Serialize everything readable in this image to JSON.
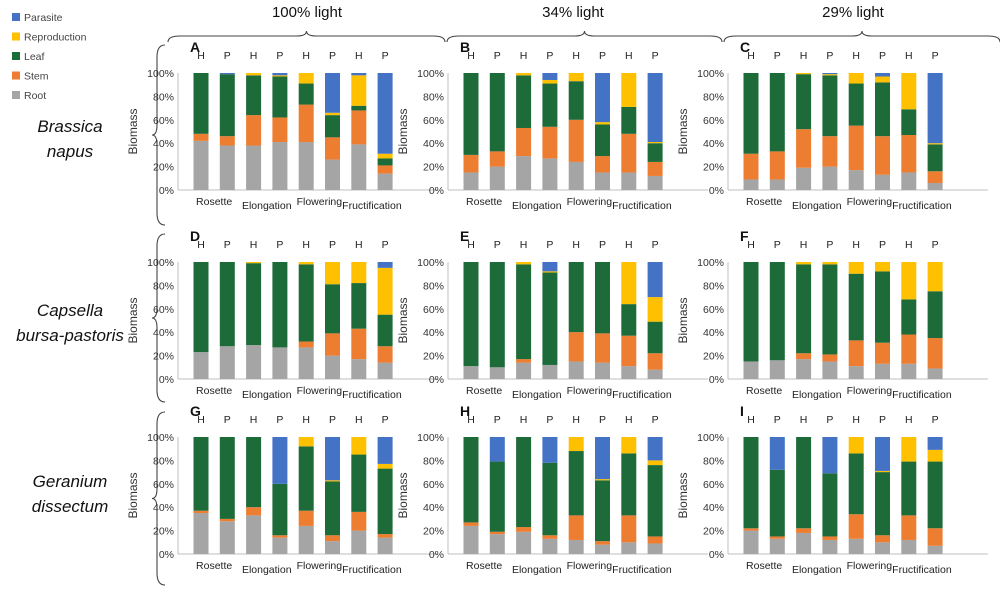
{
  "colors": {
    "Parasite": "#4472C4",
    "Reproduction": "#FFC000",
    "Leaf": "#1E6B3A",
    "Stem": "#ED7D31",
    "Root": "#A5A5A5"
  },
  "legend": [
    "Parasite",
    "Reproduction",
    "Leaf",
    "Stem",
    "Root"
  ],
  "conditions": [
    "100% light",
    "34% light",
    "29% light"
  ],
  "species": [
    {
      "line1": "Brassica",
      "line2": "napus"
    },
    {
      "line1": "Capsella",
      "line2": "bursa-pastoris"
    },
    {
      "line1": "Geranium",
      "line2": "dissectum"
    }
  ],
  "bar_labels": [
    "H",
    "P",
    "H",
    "P",
    "H",
    "P",
    "H",
    "P"
  ],
  "stages": [
    "Rosette",
    "Elongation",
    "Flowering",
    "Fructification"
  ],
  "ylabel": "Biomass",
  "yticks": [
    "0%",
    "20%",
    "40%",
    "60%",
    "80%",
    "100%"
  ],
  "chart_data": [
    {
      "panel": "A",
      "type": "bar",
      "stacked": true,
      "ylim": [
        0,
        100
      ],
      "ylabel": "Biomass",
      "categories": [
        "Rosette H",
        "Rosette P",
        "Elongation H",
        "Elongation P",
        "Flowering H",
        "Flowering P",
        "Fructification H",
        "Fructification P"
      ],
      "series": [
        {
          "name": "Root",
          "values": [
            42,
            38,
            38,
            41,
            41,
            26,
            39,
            14
          ]
        },
        {
          "name": "Stem",
          "values": [
            6,
            8,
            26,
            21,
            32,
            19,
            29,
            7
          ]
        },
        {
          "name": "Leaf",
          "values": [
            52,
            53,
            34,
            35,
            18,
            19,
            4,
            6
          ]
        },
        {
          "name": "Reproduction",
          "values": [
            0,
            0,
            2,
            1,
            9,
            2,
            26,
            4
          ]
        },
        {
          "name": "Parasite",
          "values": [
            0,
            1,
            0,
            2,
            0,
            34,
            2,
            69
          ]
        }
      ]
    },
    {
      "panel": "B",
      "type": "bar",
      "stacked": true,
      "ylim": [
        0,
        100
      ],
      "ylabel": "Biomass",
      "categories": [
        "Rosette H",
        "Rosette P",
        "Elongation H",
        "Elongation P",
        "Flowering H",
        "Flowering P",
        "Fructification H",
        "Fructification P"
      ],
      "series": [
        {
          "name": "Root",
          "values": [
            15,
            20,
            29,
            27,
            24,
            15,
            15,
            12
          ]
        },
        {
          "name": "Stem",
          "values": [
            15,
            13,
            24,
            27,
            36,
            14,
            33,
            12
          ]
        },
        {
          "name": "Leaf",
          "values": [
            70,
            67,
            45,
            37,
            33,
            27,
            23,
            16
          ]
        },
        {
          "name": "Reproduction",
          "values": [
            0,
            0,
            2,
            3,
            7,
            2,
            29,
            1
          ]
        },
        {
          "name": "Parasite",
          "values": [
            0,
            0,
            0,
            6,
            0,
            42,
            0,
            59
          ]
        }
      ]
    },
    {
      "panel": "C",
      "type": "bar",
      "stacked": true,
      "ylim": [
        0,
        100
      ],
      "ylabel": "Biomass",
      "categories": [
        "Rosette H",
        "Rosette P",
        "Elongation H",
        "Elongation P",
        "Flowering H",
        "Flowering P",
        "Fructification H",
        "Fructification P"
      ],
      "series": [
        {
          "name": "Root",
          "values": [
            9,
            9,
            19,
            20,
            17,
            13,
            15,
            6
          ]
        },
        {
          "name": "Stem",
          "values": [
            22,
            24,
            33,
            26,
            38,
            33,
            32,
            10
          ]
        },
        {
          "name": "Leaf",
          "values": [
            69,
            67,
            47,
            52,
            36,
            46,
            22,
            23
          ]
        },
        {
          "name": "Reproduction",
          "values": [
            0,
            0,
            1,
            1,
            9,
            5,
            31,
            1
          ]
        },
        {
          "name": "Parasite",
          "values": [
            0,
            0,
            0,
            1,
            0,
            3,
            0,
            60
          ]
        }
      ]
    },
    {
      "panel": "D",
      "type": "bar",
      "stacked": true,
      "ylim": [
        0,
        100
      ],
      "ylabel": "Biomass",
      "categories": [
        "Rosette H",
        "Rosette P",
        "Elongation H",
        "Elongation P",
        "Flowering H",
        "Flowering P",
        "Fructification H",
        "Fructification P"
      ],
      "series": [
        {
          "name": "Root",
          "values": [
            23,
            28,
            29,
            27,
            27,
            20,
            17,
            14
          ]
        },
        {
          "name": "Stem",
          "values": [
            0,
            0,
            0,
            0,
            5,
            19,
            26,
            14
          ]
        },
        {
          "name": "Leaf",
          "values": [
            77,
            72,
            70,
            73,
            66,
            42,
            39,
            27
          ]
        },
        {
          "name": "Reproduction",
          "values": [
            0,
            0,
            1,
            0,
            2,
            19,
            18,
            40
          ]
        },
        {
          "name": "Parasite",
          "values": [
            0,
            0,
            0,
            0,
            0,
            0,
            0,
            5
          ]
        }
      ]
    },
    {
      "panel": "E",
      "type": "bar",
      "stacked": true,
      "ylim": [
        0,
        100
      ],
      "ylabel": "Biomass",
      "categories": [
        "Rosette H",
        "Rosette P",
        "Elongation H",
        "Elongation P",
        "Flowering H",
        "Flowering P",
        "Fructification H",
        "Fructification P"
      ],
      "series": [
        {
          "name": "Root",
          "values": [
            11,
            10,
            14,
            12,
            15,
            14,
            11,
            8
          ]
        },
        {
          "name": "Stem",
          "values": [
            0,
            0,
            3,
            0,
            25,
            25,
            26,
            14
          ]
        },
        {
          "name": "Leaf",
          "values": [
            89,
            90,
            81,
            79,
            60,
            61,
            27,
            27
          ]
        },
        {
          "name": "Reproduction",
          "values": [
            0,
            0,
            2,
            1,
            0,
            0,
            36,
            21
          ]
        },
        {
          "name": "Parasite",
          "values": [
            0,
            0,
            0,
            8,
            0,
            0,
            0,
            30
          ]
        }
      ]
    },
    {
      "panel": "F",
      "type": "bar",
      "stacked": true,
      "ylim": [
        0,
        100
      ],
      "ylabel": "Biomass",
      "categories": [
        "Rosette H",
        "Rosette P",
        "Elongation H",
        "Elongation P",
        "Flowering H",
        "Flowering P",
        "Fructification H",
        "Fructification P"
      ],
      "series": [
        {
          "name": "Root",
          "values": [
            15,
            16,
            17,
            15,
            11,
            13,
            13,
            9
          ]
        },
        {
          "name": "Stem",
          "values": [
            0,
            0,
            5,
            6,
            22,
            18,
            25,
            26
          ]
        },
        {
          "name": "Leaf",
          "values": [
            85,
            84,
            76,
            77,
            57,
            61,
            30,
            40
          ]
        },
        {
          "name": "Reproduction",
          "values": [
            0,
            0,
            2,
            2,
            10,
            8,
            32,
            25
          ]
        },
        {
          "name": "Parasite",
          "values": [
            0,
            0,
            0,
            0,
            0,
            0,
            0,
            0
          ]
        }
      ]
    },
    {
      "panel": "G",
      "type": "bar",
      "stacked": true,
      "ylim": [
        0,
        100
      ],
      "ylabel": "Biomass",
      "categories": [
        "Rosette H",
        "Rosette P",
        "Elongation H",
        "Elongation P",
        "Flowering H",
        "Flowering P",
        "Fructification H",
        "Fructification P"
      ],
      "series": [
        {
          "name": "Root",
          "values": [
            35,
            28,
            33,
            14,
            24,
            11,
            20,
            14
          ]
        },
        {
          "name": "Stem",
          "values": [
            2,
            2,
            7,
            2,
            13,
            5,
            16,
            3
          ]
        },
        {
          "name": "Leaf",
          "values": [
            63,
            70,
            60,
            44,
            55,
            46,
            49,
            56
          ]
        },
        {
          "name": "Reproduction",
          "values": [
            0,
            0,
            0,
            0,
            8,
            1,
            15,
            4
          ]
        },
        {
          "name": "Parasite",
          "values": [
            0,
            0,
            0,
            40,
            0,
            37,
            0,
            23
          ]
        }
      ]
    },
    {
      "panel": "H",
      "type": "bar",
      "stacked": true,
      "ylim": [
        0,
        100
      ],
      "ylabel": "Biomass",
      "categories": [
        "Rosette H",
        "Rosette P",
        "Elongation H",
        "Elongation P",
        "Flowering H",
        "Flowering P",
        "Fructification H",
        "Fructification P"
      ],
      "series": [
        {
          "name": "Root",
          "values": [
            24,
            17,
            19,
            13,
            12,
            8,
            10,
            9
          ]
        },
        {
          "name": "Stem",
          "values": [
            3,
            2,
            4,
            3,
            21,
            3,
            23,
            6
          ]
        },
        {
          "name": "Leaf",
          "values": [
            73,
            60,
            77,
            62,
            55,
            52,
            53,
            61
          ]
        },
        {
          "name": "Reproduction",
          "values": [
            0,
            0,
            0,
            0,
            12,
            1,
            14,
            4
          ]
        },
        {
          "name": "Parasite",
          "values": [
            0,
            21,
            0,
            22,
            0,
            36,
            0,
            20
          ]
        }
      ]
    },
    {
      "panel": "I",
      "type": "bar",
      "stacked": true,
      "ylim": [
        0,
        100
      ],
      "ylabel": "Biomass",
      "categories": [
        "Rosette H",
        "Rosette P",
        "Elongation H",
        "Elongation P",
        "Flowering H",
        "Flowering P",
        "Fructification H",
        "Fructification P"
      ],
      "series": [
        {
          "name": "Root",
          "values": [
            20,
            13,
            18,
            12,
            13,
            10,
            12,
            7
          ]
        },
        {
          "name": "Stem",
          "values": [
            2,
            2,
            4,
            3,
            21,
            6,
            21,
            15
          ]
        },
        {
          "name": "Leaf",
          "values": [
            78,
            57,
            78,
            54,
            52,
            54,
            46,
            57
          ]
        },
        {
          "name": "Reproduction",
          "values": [
            0,
            0,
            0,
            0,
            14,
            1,
            21,
            10
          ]
        },
        {
          "name": "Parasite",
          "values": [
            0,
            28,
            0,
            31,
            0,
            29,
            0,
            11
          ]
        }
      ]
    }
  ]
}
